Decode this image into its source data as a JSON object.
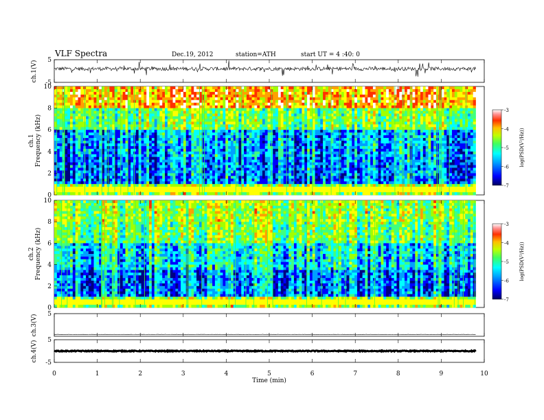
{
  "header": {
    "title": "VLF  Spectra",
    "date": "Dec.19, 2012",
    "station": "station=ATH",
    "start": "start  UT =   4 :40: 0"
  },
  "chart_data": [
    {
      "type": "line",
      "name": "waveform-ch1",
      "ylabel": "ch.1(V)",
      "ylim": [
        -5,
        5
      ],
      "yticks": [
        "5",
        "-5"
      ],
      "description_values": "noisy waveform centered near 1 V with amplitude about +/-1.5 V",
      "x_range": [
        0,
        9.8
      ]
    },
    {
      "type": "heatmap",
      "name": "spectrogram-ch1",
      "ylabel": "ch.1\nFrequency  (kHz)",
      "ylim": [
        0,
        10
      ],
      "yticks": [
        "0",
        "2",
        "4",
        "6",
        "8",
        "10"
      ],
      "x_range": [
        0,
        9.8
      ],
      "colorbar": {
        "label": "log(PSD(V²/Hz))",
        "range": [
          -7,
          -3
        ],
        "ticks": [
          "-3",
          "-4",
          "-5",
          "-6",
          "-7"
        ],
        "colors": [
          "#000080",
          "#0000ff",
          "#00a0ff",
          "#00ffff",
          "#40ff80",
          "#a0ff00",
          "#ffff00",
          "#ffa000",
          "#ff3000",
          "#ffffff"
        ]
      }
    },
    {
      "type": "heatmap",
      "name": "spectrogram-ch2",
      "ylabel": "ch.2\nFrequency  (kHz)",
      "ylim": [
        0,
        10
      ],
      "yticks": [
        "0",
        "2",
        "4",
        "6",
        "8",
        "10"
      ],
      "x_range": [
        0,
        9.8
      ],
      "colorbar": {
        "label": "log(PSD(V²/Hz))",
        "range": [
          -7,
          -3
        ],
        "ticks": [
          "-3",
          "-4",
          "-5",
          "-6",
          "-7"
        ],
        "colors": [
          "#000080",
          "#0000ff",
          "#00a0ff",
          "#00ffff",
          "#40ff80",
          "#a0ff00",
          "#ffff00",
          "#ffa000",
          "#ff3000",
          "#ffffff"
        ]
      }
    },
    {
      "type": "line",
      "name": "waveform-ch3",
      "ylabel": "ch.3(V)",
      "ylim": [
        -5,
        5
      ],
      "yticks": [
        "5"
      ],
      "description_values": "flat line near -5 V",
      "x_range": [
        0,
        9.8
      ]
    },
    {
      "type": "line",
      "name": "waveform-ch4",
      "ylabel": "ch.4(V)",
      "ylim": [
        -5,
        5
      ],
      "yticks": [
        "5",
        "-5"
      ],
      "description_values": "flat thick line near 0 V",
      "x_range": [
        0,
        9.8
      ]
    }
  ],
  "xaxis": {
    "label": "Time  (min)",
    "ticks": [
      "0",
      "1",
      "2",
      "3",
      "4",
      "5",
      "6",
      "7",
      "8",
      "9",
      "10"
    ],
    "range": [
      0,
      10
    ]
  }
}
